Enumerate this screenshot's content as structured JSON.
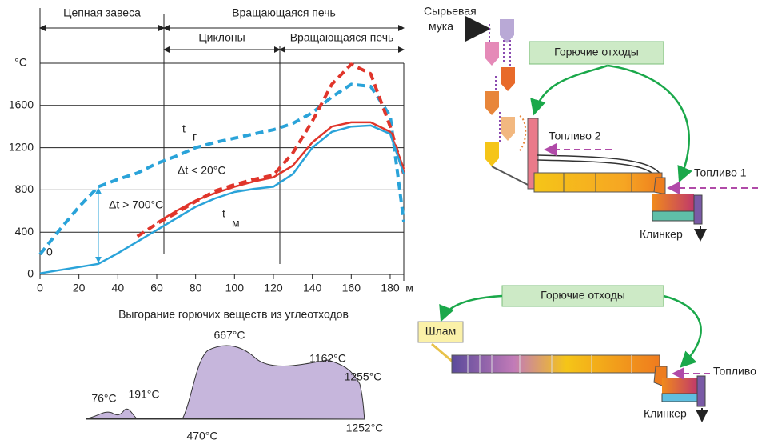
{
  "chart_data": {
    "type": "line",
    "sections": [
      "Цепная завеса",
      "Вращающаяся печь",
      "Циклоны",
      "Вращающаяся печь"
    ],
    "y_label": "°C",
    "x_label": "м",
    "x": [
      0,
      10,
      20,
      30,
      40,
      50,
      60,
      70,
      80,
      90,
      100,
      110,
      120,
      130,
      140,
      150,
      160,
      170,
      180,
      187
    ],
    "series": [
      {
        "color": "#2aa3d9",
        "dash": true,
        "values": [
          190,
          420,
          640,
          830,
          900,
          960,
          1050,
          1120,
          1200,
          1250,
          1290,
          1330,
          1370,
          1430,
          1530,
          1680,
          1800,
          1780,
          1500,
          500
        ]
      },
      {
        "color": "#e0352b",
        "dash": true,
        "values": [
          null,
          null,
          null,
          null,
          null,
          360,
          480,
          580,
          690,
          790,
          850,
          900,
          940,
          1150,
          1450,
          1800,
          1990,
          1900,
          1400,
          950
        ]
      },
      {
        "color": "#e0352b",
        "dash": false,
        "values": [
          null,
          null,
          null,
          null,
          null,
          null,
          490,
          600,
          700,
          770,
          830,
          880,
          920,
          1030,
          1250,
          1400,
          1440,
          1440,
          1350,
          1000
        ]
      },
      {
        "color": "#2aa3d9",
        "dash": false,
        "values": [
          10,
          40,
          70,
          100,
          200,
          310,
          420,
          530,
          640,
          720,
          780,
          810,
          830,
          950,
          1200,
          1350,
          1400,
          1410,
          1330,
          950
        ]
      }
    ],
    "annotations": [
      "t",
      "г",
      "Δt < 20°C",
      "Δt > 700°C",
      "t",
      "м",
      "0"
    ],
    "xlim": [
      0,
      187
    ],
    "ylim": [
      0,
      2000
    ],
    "xticks": [
      0,
      20,
      40,
      60,
      80,
      100,
      120,
      140,
      160,
      180
    ],
    "yticks": [
      0,
      400,
      800,
      1200,
      1600
    ],
    "grid": true
  },
  "burnout_chart": {
    "title": "Выгорание горючих веществ из углеотходов",
    "labels": [
      "76°C",
      "191°C",
      "667°C",
      "470°C",
      "1162°C",
      "1255°C",
      "1252°C"
    ]
  },
  "diagram_top": {
    "raw_meal": [
      "Сырьевая",
      "мука"
    ],
    "waste": "Горючие отходы",
    "fuel2": "Топливо 2",
    "fuel1": "Топливо 1",
    "clinker": "Клинкер"
  },
  "diagram_bottom": {
    "waste": "Горючие отходы",
    "slurry": "Шлам",
    "fuel": "Топливо",
    "clinker": "Клинкер"
  }
}
